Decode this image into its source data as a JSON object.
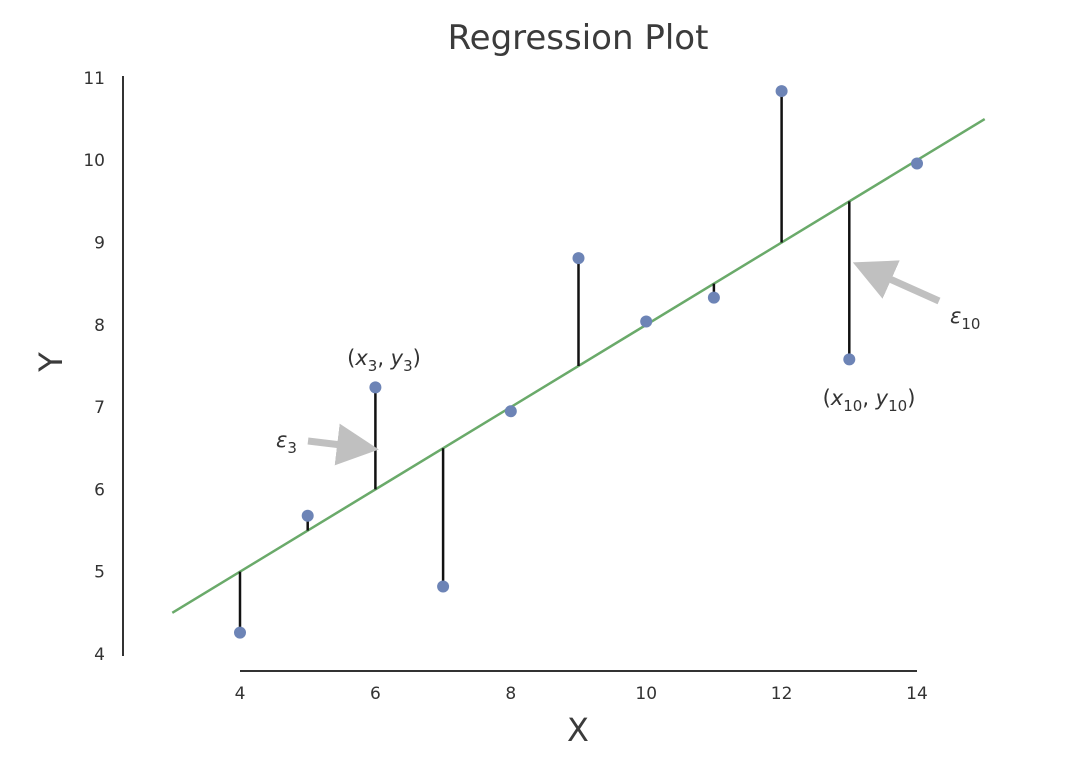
{
  "chart_data": {
    "type": "scatter",
    "title": "Regression Plot",
    "xlabel": "X",
    "ylabel": "Y",
    "xlim": [
      2.8,
      15.2
    ],
    "ylim": [
      3.9,
      11.2
    ],
    "x_ticks": [
      4,
      6,
      8,
      10,
      12,
      14
    ],
    "y_ticks": [
      4,
      5,
      6,
      7,
      8,
      9,
      10,
      11
    ],
    "grid": false,
    "points": {
      "x": [
        4,
        5,
        6,
        7,
        8,
        9,
        10,
        11,
        12,
        13,
        14
      ],
      "y": [
        4.26,
        5.68,
        7.24,
        4.82,
        6.95,
        8.81,
        8.04,
        8.33,
        10.84,
        7.58,
        9.96
      ]
    },
    "regression_line": {
      "slope": 0.5,
      "intercept": 3.0,
      "x_range": [
        3,
        15
      ]
    },
    "residuals": "vertical segments from each point to the regression line",
    "annotations": {
      "p3": {
        "base": "x",
        "sub1": "3",
        "base2": "y",
        "sub2": "3"
      },
      "e3": {
        "base": "ε",
        "sub": "3"
      },
      "p10": {
        "base": "x",
        "sub1": "10",
        "base2": "y",
        "sub2": "10"
      },
      "e10": {
        "base": "ε",
        "sub": "10"
      }
    },
    "colors": {
      "points": "#6d84b6",
      "line": "#6aaa6a",
      "residuals": "#111111",
      "arrows": "#c0c0c0",
      "axes": "#333333"
    }
  }
}
